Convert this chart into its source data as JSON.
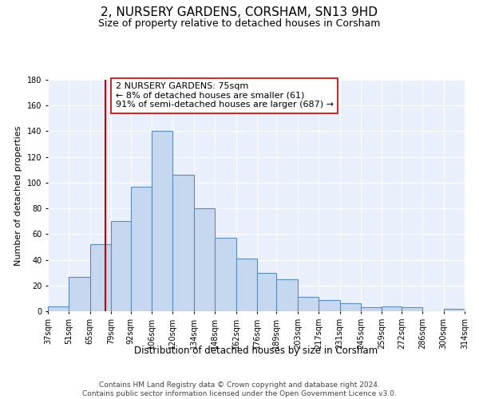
{
  "title": "2, NURSERY GARDENS, CORSHAM, SN13 9HD",
  "subtitle": "Size of property relative to detached houses in Corsham",
  "xlabel": "Distribution of detached houses by size in Corsham",
  "ylabel": "Number of detached properties",
  "bar_lefts": [
    37,
    51,
    65,
    79,
    92,
    106,
    120,
    134,
    148,
    162,
    176,
    189,
    203,
    217,
    231,
    245,
    259,
    272,
    286,
    300
  ],
  "bar_widths": [
    14,
    14,
    14,
    13,
    14,
    14,
    14,
    14,
    14,
    14,
    13,
    14,
    14,
    14,
    14,
    14,
    13,
    14,
    14,
    14
  ],
  "bar_heights": [
    4,
    27,
    52,
    70,
    97,
    140,
    106,
    80,
    57,
    41,
    30,
    25,
    11,
    9,
    6,
    3,
    4,
    3,
    0,
    2
  ],
  "bar_color": "#c5d8f0",
  "bar_edge_color": "#5b8db8",
  "bar_linewidth": 0.8,
  "vline_x": 75,
  "vline_color": "#cc0000",
  "annotation_text": "2 NURSERY GARDENS: 75sqm\n← 8% of detached houses are smaller (61)\n91% of semi-detached houses are larger (687) →",
  "annotation_box_color": "#ffffff",
  "annotation_box_edgecolor": "#cc0000",
  "ylim": [
    0,
    180
  ],
  "yticks": [
    0,
    20,
    40,
    60,
    80,
    100,
    120,
    140,
    160,
    180
  ],
  "tick_positions": [
    37,
    51,
    65,
    79,
    92,
    106,
    120,
    134,
    148,
    162,
    176,
    189,
    203,
    217,
    231,
    245,
    259,
    272,
    286,
    300,
    314
  ],
  "tick_labels": [
    "37sqm",
    "51sqm",
    "65sqm",
    "79sqm",
    "92sqm",
    "106sqm",
    "120sqm",
    "134sqm",
    "148sqm",
    "162sqm",
    "176sqm",
    "189sqm",
    "203sqm",
    "217sqm",
    "231sqm",
    "245sqm",
    "259sqm",
    "272sqm",
    "286sqm",
    "300sqm",
    "314sqm"
  ],
  "xlim": [
    37,
    314
  ],
  "background_color": "#eaf0fb",
  "footer_text": "Contains HM Land Registry data © Crown copyright and database right 2024.\nContains public sector information licensed under the Open Government Licence v3.0.",
  "title_fontsize": 11,
  "subtitle_fontsize": 9,
  "xlabel_fontsize": 8.5,
  "ylabel_fontsize": 8,
  "tick_fontsize": 7,
  "annotation_fontsize": 8,
  "footer_fontsize": 6.5
}
